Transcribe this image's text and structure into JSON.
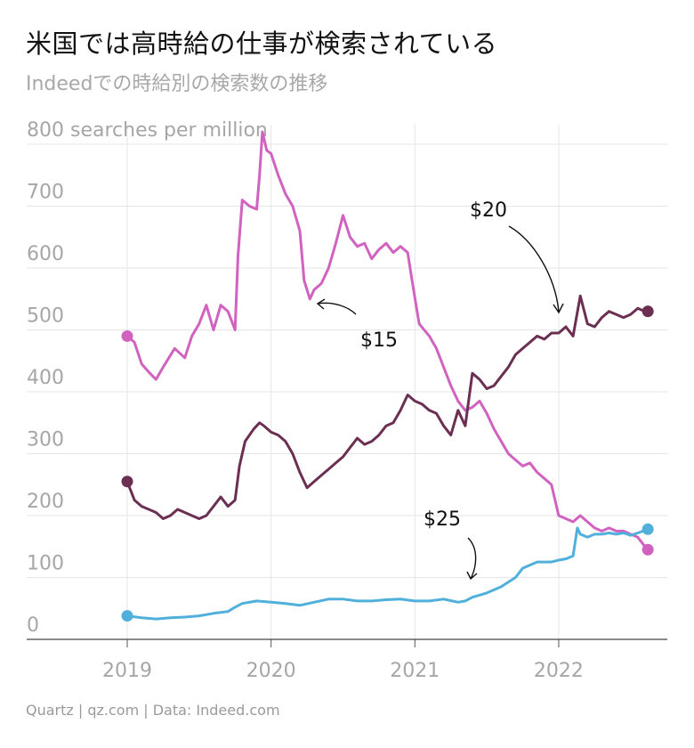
{
  "header": {
    "title": "米国では高時給の仕事が検索されている",
    "subtitle": "Indeedでの時給別の検索数の推移"
  },
  "footer": {
    "source": "Quartz | qz.com | Data: Indeed.com"
  },
  "chart_data": {
    "type": "line",
    "title": "米国では高時給の仕事が検索されている",
    "subtitle": "Indeedでの時給別の検索数の推移",
    "xlabel": "",
    "ylabel": "searches per million",
    "y_top_label": "800 searches per million",
    "xlim": [
      2019.0,
      2022.65
    ],
    "ylim": [
      0,
      800
    ],
    "x_ticks": [
      2019,
      2020,
      2021,
      2022
    ],
    "x_tick_labels": [
      "2019",
      "2020",
      "2021",
      "2022"
    ],
    "y_ticks": [
      0,
      100,
      200,
      300,
      400,
      500,
      600,
      700,
      800
    ],
    "y_tick_labels": [
      "0",
      "100",
      "200",
      "300",
      "400",
      "500",
      "600",
      "700",
      "800 searches per million"
    ],
    "grid": true,
    "legend": "none",
    "series": [
      {
        "name": "$15",
        "color": "#d162c0",
        "points": [
          [
            2019.0,
            490
          ],
          [
            2019.05,
            480
          ],
          [
            2019.1,
            445
          ],
          [
            2019.15,
            432
          ],
          [
            2019.2,
            420
          ],
          [
            2019.25,
            440
          ],
          [
            2019.33,
            470
          ],
          [
            2019.4,
            455
          ],
          [
            2019.45,
            490
          ],
          [
            2019.5,
            510
          ],
          [
            2019.55,
            540
          ],
          [
            2019.6,
            500
          ],
          [
            2019.65,
            540
          ],
          [
            2019.7,
            530
          ],
          [
            2019.75,
            500
          ],
          [
            2019.77,
            620
          ],
          [
            2019.8,
            710
          ],
          [
            2019.85,
            700
          ],
          [
            2019.9,
            695
          ],
          [
            2019.92,
            750
          ],
          [
            2019.94,
            820
          ],
          [
            2019.97,
            790
          ],
          [
            2020.0,
            785
          ],
          [
            2020.05,
            750
          ],
          [
            2020.1,
            720
          ],
          [
            2020.15,
            700
          ],
          [
            2020.2,
            660
          ],
          [
            2020.23,
            580
          ],
          [
            2020.27,
            550
          ],
          [
            2020.3,
            565
          ],
          [
            2020.35,
            575
          ],
          [
            2020.4,
            600
          ],
          [
            2020.45,
            640
          ],
          [
            2020.5,
            685
          ],
          [
            2020.55,
            650
          ],
          [
            2020.6,
            635
          ],
          [
            2020.65,
            640
          ],
          [
            2020.7,
            615
          ],
          [
            2020.75,
            630
          ],
          [
            2020.8,
            640
          ],
          [
            2020.85,
            625
          ],
          [
            2020.9,
            635
          ],
          [
            2020.95,
            625
          ],
          [
            2020.98,
            580
          ],
          [
            2021.03,
            510
          ],
          [
            2021.1,
            490
          ],
          [
            2021.15,
            470
          ],
          [
            2021.2,
            440
          ],
          [
            2021.25,
            410
          ],
          [
            2021.3,
            385
          ],
          [
            2021.35,
            370
          ],
          [
            2021.4,
            375
          ],
          [
            2021.45,
            385
          ],
          [
            2021.5,
            365
          ],
          [
            2021.55,
            340
          ],
          [
            2021.6,
            320
          ],
          [
            2021.65,
            300
          ],
          [
            2021.7,
            290
          ],
          [
            2021.75,
            280
          ],
          [
            2021.8,
            285
          ],
          [
            2021.85,
            270
          ],
          [
            2021.9,
            260
          ],
          [
            2021.95,
            250
          ],
          [
            2022.0,
            200
          ],
          [
            2022.05,
            195
          ],
          [
            2022.1,
            190
          ],
          [
            2022.15,
            200
          ],
          [
            2022.2,
            190
          ],
          [
            2022.25,
            180
          ],
          [
            2022.3,
            175
          ],
          [
            2022.35,
            180
          ],
          [
            2022.4,
            175
          ],
          [
            2022.45,
            175
          ],
          [
            2022.5,
            170
          ],
          [
            2022.55,
            165
          ],
          [
            2022.6,
            150
          ],
          [
            2022.62,
            145
          ]
        ]
      },
      {
        "name": "$20",
        "color": "#6b2f52",
        "points": [
          [
            2019.0,
            255
          ],
          [
            2019.05,
            225
          ],
          [
            2019.1,
            215
          ],
          [
            2019.15,
            210
          ],
          [
            2019.2,
            205
          ],
          [
            2019.25,
            195
          ],
          [
            2019.3,
            200
          ],
          [
            2019.35,
            210
          ],
          [
            2019.4,
            205
          ],
          [
            2019.45,
            200
          ],
          [
            2019.5,
            195
          ],
          [
            2019.55,
            200
          ],
          [
            2019.6,
            215
          ],
          [
            2019.65,
            230
          ],
          [
            2019.7,
            215
          ],
          [
            2019.75,
            225
          ],
          [
            2019.78,
            280
          ],
          [
            2019.82,
            320
          ],
          [
            2019.88,
            340
          ],
          [
            2019.92,
            350
          ],
          [
            2019.95,
            345
          ],
          [
            2020.0,
            335
          ],
          [
            2020.05,
            330
          ],
          [
            2020.1,
            320
          ],
          [
            2020.15,
            300
          ],
          [
            2020.2,
            270
          ],
          [
            2020.25,
            245
          ],
          [
            2020.3,
            255
          ],
          [
            2020.35,
            265
          ],
          [
            2020.4,
            275
          ],
          [
            2020.45,
            285
          ],
          [
            2020.5,
            295
          ],
          [
            2020.55,
            310
          ],
          [
            2020.6,
            325
          ],
          [
            2020.65,
            315
          ],
          [
            2020.7,
            320
          ],
          [
            2020.75,
            330
          ],
          [
            2020.8,
            345
          ],
          [
            2020.85,
            350
          ],
          [
            2020.9,
            370
          ],
          [
            2020.95,
            395
          ],
          [
            2021.0,
            385
          ],
          [
            2021.05,
            380
          ],
          [
            2021.1,
            370
          ],
          [
            2021.15,
            365
          ],
          [
            2021.2,
            345
          ],
          [
            2021.25,
            330
          ],
          [
            2021.3,
            370
          ],
          [
            2021.35,
            345
          ],
          [
            2021.4,
            430
          ],
          [
            2021.45,
            420
          ],
          [
            2021.5,
            405
          ],
          [
            2021.55,
            410
          ],
          [
            2021.6,
            425
          ],
          [
            2021.65,
            440
          ],
          [
            2021.7,
            460
          ],
          [
            2021.75,
            470
          ],
          [
            2021.8,
            480
          ],
          [
            2021.85,
            490
          ],
          [
            2021.9,
            485
          ],
          [
            2021.95,
            495
          ],
          [
            2022.0,
            495
          ],
          [
            2022.05,
            505
          ],
          [
            2022.1,
            490
          ],
          [
            2022.15,
            555
          ],
          [
            2022.2,
            510
          ],
          [
            2022.25,
            505
          ],
          [
            2022.3,
            520
          ],
          [
            2022.35,
            530
          ],
          [
            2022.4,
            525
          ],
          [
            2022.45,
            520
          ],
          [
            2022.5,
            525
          ],
          [
            2022.55,
            535
          ],
          [
            2022.6,
            530
          ],
          [
            2022.62,
            530
          ]
        ]
      },
      {
        "name": "$25",
        "color": "#50b0db",
        "points": [
          [
            2019.0,
            38
          ],
          [
            2019.1,
            35
          ],
          [
            2019.2,
            33
          ],
          [
            2019.3,
            35
          ],
          [
            2019.4,
            36
          ],
          [
            2019.5,
            38
          ],
          [
            2019.6,
            42
          ],
          [
            2019.7,
            45
          ],
          [
            2019.75,
            52
          ],
          [
            2019.8,
            58
          ],
          [
            2019.9,
            62
          ],
          [
            2020.0,
            60
          ],
          [
            2020.1,
            58
          ],
          [
            2020.2,
            55
          ],
          [
            2020.3,
            60
          ],
          [
            2020.4,
            65
          ],
          [
            2020.5,
            65
          ],
          [
            2020.6,
            62
          ],
          [
            2020.7,
            62
          ],
          [
            2020.8,
            64
          ],
          [
            2020.9,
            65
          ],
          [
            2021.0,
            62
          ],
          [
            2021.1,
            62
          ],
          [
            2021.2,
            65
          ],
          [
            2021.3,
            60
          ],
          [
            2021.35,
            62
          ],
          [
            2021.4,
            68
          ],
          [
            2021.5,
            75
          ],
          [
            2021.6,
            85
          ],
          [
            2021.7,
            100
          ],
          [
            2021.75,
            115
          ],
          [
            2021.8,
            120
          ],
          [
            2021.85,
            125
          ],
          [
            2021.9,
            125
          ],
          [
            2021.95,
            125
          ],
          [
            2022.0,
            128
          ],
          [
            2022.05,
            130
          ],
          [
            2022.1,
            135
          ],
          [
            2022.13,
            180
          ],
          [
            2022.15,
            170
          ],
          [
            2022.2,
            165
          ],
          [
            2022.25,
            170
          ],
          [
            2022.3,
            170
          ],
          [
            2022.35,
            172
          ],
          [
            2022.4,
            170
          ],
          [
            2022.45,
            172
          ],
          [
            2022.5,
            168
          ],
          [
            2022.55,
            172
          ],
          [
            2022.6,
            176
          ],
          [
            2022.62,
            178
          ]
        ]
      }
    ],
    "annotations": [
      {
        "text": "$15",
        "series": "$15"
      },
      {
        "text": "$20",
        "series": "$20"
      },
      {
        "text": "$25",
        "series": "$25"
      }
    ]
  }
}
